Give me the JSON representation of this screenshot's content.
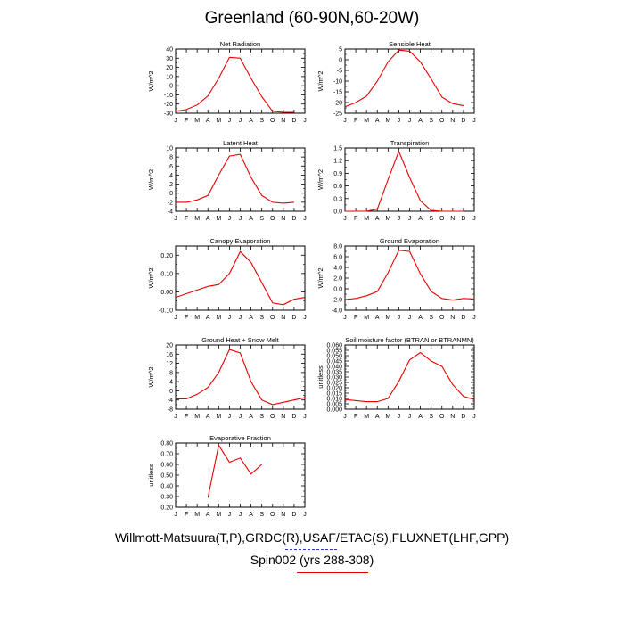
{
  "figure": {
    "title": "Greenland (60-90N,60-20W)",
    "footer_line1": "Willmott-Matsuura(T,P),GRDC(R),USAF/ETAC(S),FLUXNET(LHF,GPP)",
    "footer_line2": "Spin002 (yrs 288-308)",
    "line_color": "#e60000",
    "footer_rule_colors": [
      "#3333cc",
      "#e60000"
    ]
  },
  "chart_data": [
    {
      "type": "line",
      "title": "Net Radiation",
      "ylabel": "W/m^2",
      "xlabel": "",
      "categories": [
        "J",
        "F",
        "M",
        "A",
        "M",
        "J",
        "J",
        "A",
        "S",
        "O",
        "N",
        "D",
        "J"
      ],
      "x": [
        0,
        1,
        2,
        3,
        4,
        5,
        6,
        7,
        8,
        9,
        10,
        11
      ],
      "ylim": [
        -30,
        40
      ],
      "yticks": [
        -30,
        -20,
        -10,
        0,
        10,
        20,
        30,
        40
      ],
      "ytick_labels": [
        "-30",
        "-20",
        "-10",
        "0",
        "10",
        "20",
        "30",
        "40"
      ],
      "series": [
        {
          "values": [
            -28,
            -26,
            -21,
            -11,
            8,
            31,
            30,
            8,
            -12,
            -28,
            -29,
            -29
          ]
        }
      ]
    },
    {
      "type": "line",
      "title": "Sensible Heat",
      "ylabel": "W/m^2",
      "xlabel": "",
      "categories": [
        "J",
        "F",
        "M",
        "A",
        "M",
        "J",
        "J",
        "A",
        "S",
        "O",
        "N",
        "D",
        "J"
      ],
      "x": [
        0,
        1,
        2,
        3,
        4,
        5,
        6,
        7,
        8,
        9,
        10,
        11
      ],
      "ylim": [
        -25,
        5
      ],
      "yticks": [
        -25,
        -20,
        -15,
        -10,
        -5,
        0,
        5
      ],
      "ytick_labels": [
        "-25",
        "-20",
        "-15",
        "-10",
        "-5",
        "0",
        "5"
      ],
      "series": [
        {
          "values": [
            -22,
            -20,
            -17,
            -10,
            -1,
            4.5,
            4,
            -1,
            -9,
            -17.5,
            -20.5,
            -21.5
          ]
        }
      ]
    },
    {
      "type": "line",
      "title": "Latent Heat",
      "ylabel": "W/m^2",
      "xlabel": "",
      "categories": [
        "J",
        "F",
        "M",
        "A",
        "M",
        "J",
        "J",
        "A",
        "S",
        "O",
        "N",
        "D",
        "J"
      ],
      "x": [
        0,
        1,
        2,
        3,
        4,
        5,
        6,
        7,
        8,
        9,
        10,
        11
      ],
      "ylim": [
        -4,
        10
      ],
      "yticks": [
        -4,
        -2,
        0,
        2,
        4,
        6,
        8,
        10
      ],
      "ytick_labels": [
        "-4",
        "-2",
        "0",
        "2",
        "4",
        "6",
        "8",
        "10"
      ],
      "series": [
        {
          "values": [
            -2,
            -2,
            -1.5,
            -0.5,
            4,
            8.2,
            8.6,
            3.5,
            -0.5,
            -2,
            -2.2,
            -2
          ]
        }
      ]
    },
    {
      "type": "line",
      "title": "Transpiration",
      "ylabel": "W/m^2",
      "xlabel": "",
      "categories": [
        "J",
        "F",
        "M",
        "A",
        "M",
        "J",
        "J",
        "A",
        "S",
        "O",
        "N",
        "D",
        "J"
      ],
      "x": [
        0,
        1,
        2,
        3,
        4,
        5,
        6,
        7,
        8,
        9,
        10,
        11
      ],
      "ylim": [
        0,
        1.5
      ],
      "yticks": [
        0,
        0.3,
        0.6,
        0.9,
        1.2,
        1.5
      ],
      "ytick_labels": [
        "0.0",
        "0.3",
        "0.6",
        "0.9",
        "1.2",
        "1.5"
      ],
      "series": [
        {
          "values": [
            0,
            0,
            0,
            0.05,
            0.75,
            1.42,
            0.8,
            0.25,
            0.02,
            0,
            0,
            0
          ]
        }
      ]
    },
    {
      "type": "line",
      "title": "Canopy Evaporation",
      "ylabel": "W/m^2",
      "xlabel": "",
      "categories": [
        "J",
        "F",
        "M",
        "A",
        "M",
        "J",
        "J",
        "A",
        "S",
        "O",
        "N",
        "D",
        "J"
      ],
      "x": [
        0,
        1,
        2,
        3,
        4,
        5,
        6,
        7,
        8,
        9,
        10,
        11
      ],
      "ylim": [
        -0.1,
        0.25
      ],
      "yticks": [
        -0.1,
        0,
        0.1,
        0.2
      ],
      "ytick_labels": [
        "-0.10",
        "0.00",
        "0.10",
        "0.20"
      ],
      "series": [
        {
          "values": [
            -0.03,
            -0.01,
            0.01,
            0.03,
            0.04,
            0.1,
            0.22,
            0.16,
            0.05,
            -0.06,
            -0.07,
            -0.04,
            -0.03
          ]
        }
      ]
    },
    {
      "type": "line",
      "title": "Ground Evaporation",
      "ylabel": "W/m^2",
      "xlabel": "",
      "categories": [
        "J",
        "F",
        "M",
        "A",
        "M",
        "J",
        "J",
        "A",
        "S",
        "O",
        "N",
        "D",
        "J"
      ],
      "x": [
        0,
        1,
        2,
        3,
        4,
        5,
        6,
        7,
        8,
        9,
        10,
        11
      ],
      "ylim": [
        -4,
        8
      ],
      "yticks": [
        -4,
        -2,
        0,
        2,
        4,
        6,
        8
      ],
      "ytick_labels": [
        "-4.0",
        "-2.0",
        "0.0",
        "2.0",
        "4.0",
        "6.0",
        "8.0"
      ],
      "series": [
        {
          "values": [
            -2,
            -1.8,
            -1.3,
            -0.5,
            3,
            7.2,
            7,
            2.8,
            -0.5,
            -1.8,
            -2.1,
            -1.8,
            -1.9
          ]
        }
      ]
    },
    {
      "type": "line",
      "title": "Ground Heat + Snow Melt",
      "ylabel": "W/m^2",
      "xlabel": "",
      "categories": [
        "J",
        "F",
        "M",
        "A",
        "M",
        "J",
        "J",
        "A",
        "S",
        "O",
        "N",
        "D",
        "J"
      ],
      "x": [
        0,
        1,
        2,
        3,
        4,
        5,
        6,
        7,
        8,
        9,
        10,
        11
      ],
      "ylim": [
        -8,
        20
      ],
      "yticks": [
        -8,
        -4,
        0,
        4,
        8,
        12,
        16,
        20
      ],
      "ytick_labels": [
        "-8",
        "-4",
        "0",
        "4",
        "8",
        "12",
        "16",
        "20"
      ],
      "series": [
        {
          "values": [
            -3.5,
            -3.5,
            -1.5,
            1.5,
            8,
            18,
            16.5,
            4,
            -4,
            -6,
            -5,
            -4,
            -3
          ]
        }
      ]
    },
    {
      "type": "line",
      "title": "Soil moisture factor (BTRAN or BTRANMN)",
      "ylabel": "unitless",
      "xlabel": "",
      "categories": [
        "J",
        "F",
        "M",
        "A",
        "M",
        "J",
        "J",
        "A",
        "S",
        "O",
        "N",
        "D",
        "J"
      ],
      "x": [
        0,
        1,
        2,
        3,
        4,
        5,
        6,
        7,
        8,
        9,
        10,
        11,
        12
      ],
      "ylim": [
        0,
        0.06
      ],
      "yticks": [
        0,
        0.005,
        0.01,
        0.015,
        0.02,
        0.025,
        0.03,
        0.035,
        0.04,
        0.045,
        0.05,
        0.055,
        0.06
      ],
      "ytick_labels": [
        "0.000",
        "0.005",
        "0.010",
        "0.015",
        "0.020",
        "0.025",
        "0.030",
        "0.035",
        "0.040",
        "0.045",
        "0.050",
        "0.055",
        "0.060"
      ],
      "series": [
        {
          "values": [
            0.009,
            0.008,
            0.007,
            0.007,
            0.01,
            0.026,
            0.046,
            0.053,
            0.045,
            0.04,
            0.023,
            0.012,
            0.009
          ]
        }
      ]
    },
    {
      "type": "line",
      "title": "Evaporative Fraction",
      "ylabel": "unitless",
      "xlabel": "",
      "categories": [
        "J",
        "F",
        "M",
        "A",
        "M",
        "J",
        "J",
        "A",
        "S",
        "O",
        "N",
        "D",
        "J"
      ],
      "x": [
        3,
        4,
        5,
        6,
        7,
        8
      ],
      "ylim": [
        0.2,
        0.8
      ],
      "yticks": [
        0.2,
        0.3,
        0.4,
        0.5,
        0.6,
        0.7,
        0.8
      ],
      "ytick_labels": [
        "0.20",
        "0.30",
        "0.40",
        "0.50",
        "0.60",
        "0.70",
        "0.80"
      ],
      "series": [
        {
          "values": [
            0.29,
            0.78,
            0.62,
            0.66,
            0.51,
            0.6
          ]
        }
      ]
    }
  ]
}
